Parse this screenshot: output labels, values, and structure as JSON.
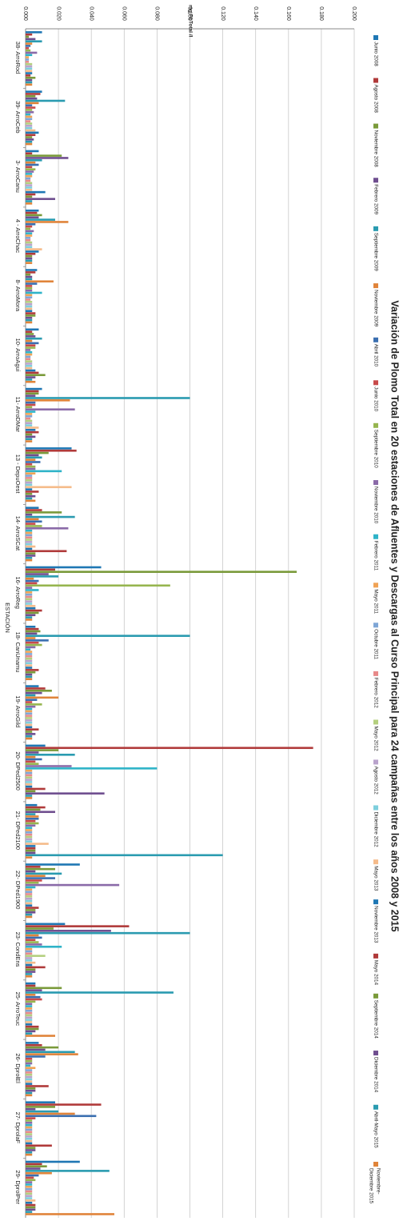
{
  "chart_data": {
    "type": "bar",
    "orientation": "horizontal",
    "title": "Variación de Plomo Total en 20 estaciones de Afluentes y Descargas al Curso Principal para 24 campañas entre los años 2008 y 2015",
    "xlabel": "mg PbTotal /l",
    "ylabel": "ESTACIÓN",
    "xlim": [
      0,
      0.2
    ],
    "x_ticks": [
      "0.000",
      "0.020",
      "0.040",
      "0.060",
      "0.080",
      "0.100",
      "0.120",
      "0.140",
      "0.160",
      "0.180",
      "0.200"
    ],
    "grid": true,
    "legend_position": "right",
    "categories": [
      "38- ArroRod",
      "39- ArroCeb",
      "3- ArroCanu",
      "4 - ArroChac",
      "8- ArroMora",
      "10- ArroAgui",
      "11- ArroDMar",
      "13 - DepuOest",
      "14- ArroSCat",
      "16- ArroReg",
      "18- CanUnamu",
      "19- ArroGild",
      "20- DPed2500",
      "21- DPed2100",
      "22- DPed1900",
      "23- CondEns",
      "25- ArroTeuc",
      "26- DprolEl",
      "27- DprolaF",
      "29- DprolPer"
    ],
    "colors": [
      "#1f77b4",
      "#b03a3a",
      "#7a9a3a",
      "#6f4e8f",
      "#2a9bb0",
      "#e0843a",
      "#3b6fb0",
      "#c84a4a",
      "#96b54f",
      "#8a6aa8",
      "#2fb3c8",
      "#f0a355",
      "#7ea6d6",
      "#e88a8a",
      "#b4cf7e",
      "#b9a3cc",
      "#7ecfdd",
      "#f5bb8a"
    ],
    "series": [
      {
        "name": "Junio 2008",
        "values": [
          0.01,
          0.01,
          0.008,
          0.008,
          0.007,
          0.008,
          0.01,
          0.028,
          0.008,
          0.046,
          0.006,
          0.008,
          0.012,
          0.007,
          0.033,
          0.024,
          0.006,
          0.008,
          0.018,
          0.033
        ]
      },
      {
        "name": "Agosto 2008",
        "values": [
          0.004,
          0.009,
          0.004,
          0.007,
          0.006,
          0.004,
          0.008,
          0.031,
          0.01,
          0.018,
          0.008,
          0.012,
          0.175,
          0.012,
          0.009,
          0.063,
          0.006,
          0.01,
          0.046,
          0.01
        ]
      },
      {
        "name": "Noviembre 2008",
        "values": [
          0.002,
          0.006,
          0.022,
          0.01,
          0.003,
          0.005,
          0.008,
          0.014,
          0.022,
          0.165,
          0.009,
          0.016,
          0.02,
          0.009,
          0.018,
          0.017,
          0.022,
          0.02,
          0.018,
          0.013
        ]
      },
      {
        "name": "Febrero 2009",
        "values": [
          0.006,
          0.007,
          0.026,
          0.008,
          0.004,
          0.006,
          0.006,
          0.008,
          0.004,
          0.014,
          0.007,
          0.01,
          0.008,
          0.018,
          0.006,
          0.052,
          0.01,
          0.012,
          0.006,
          0.009
        ]
      },
      {
        "name": "Septiembre 2009",
        "values": [
          0.01,
          0.024,
          0.01,
          0.018,
          0.004,
          0.01,
          0.1,
          0.01,
          0.03,
          0.02,
          0.1,
          0.006,
          0.03,
          0.006,
          0.022,
          0.1,
          0.09,
          0.03,
          0.02,
          0.051
        ]
      },
      {
        "name": "Noviembre 2009",
        "values": [
          0.004,
          0.008,
          0.006,
          0.026,
          0.017,
          0.004,
          0.027,
          0.006,
          0.008,
          0.005,
          0.006,
          0.02,
          0.006,
          0.008,
          0.012,
          0.008,
          0.006,
          0.032,
          0.03,
          0.016
        ]
      },
      {
        "name": "Abril 2010",
        "values": [
          0.003,
          0.004,
          0.008,
          0.006,
          0.007,
          0.008,
          0.006,
          0.009,
          0.01,
          0.008,
          0.014,
          0.007,
          0.01,
          0.008,
          0.018,
          0.01,
          0.009,
          0.012,
          0.043,
          0.008
        ]
      },
      {
        "name": "Junio 2010",
        "values": [
          0.002,
          0.006,
          0.004,
          0.004,
          0.004,
          0.006,
          0.006,
          0.004,
          0.006,
          0.007,
          0.008,
          0.004,
          0.006,
          0.006,
          0.01,
          0.006,
          0.01,
          0.004,
          0.006,
          0.005
        ]
      },
      {
        "name": "Septiembre 2010",
        "values": [
          0.003,
          0.004,
          0.006,
          0.003,
          0.004,
          0.006,
          0.004,
          0.006,
          0.01,
          0.088,
          0.01,
          0.01,
          0.008,
          0.008,
          0.008,
          0.008,
          0.006,
          0.004,
          0.004,
          0.006
        ]
      },
      {
        "name": "Noviembre 2010",
        "values": [
          0.007,
          0.005,
          0.005,
          0.005,
          0.004,
          0.003,
          0.03,
          0.006,
          0.026,
          0.004,
          0.006,
          0.006,
          0.028,
          0.006,
          0.057,
          0.01,
          0.004,
          0.004,
          0.004,
          0.004
        ]
      },
      {
        "name": "Febrero 2011",
        "values": [
          0.004,
          0.003,
          0.004,
          0.004,
          0.01,
          0.004,
          0.006,
          0.022,
          0.004,
          0.008,
          0.003,
          0.004,
          0.08,
          0.004,
          0.006,
          0.022,
          0.004,
          0.003,
          0.004,
          0.004
        ]
      },
      {
        "name": "Mayo 2011",
        "values": [
          0.002,
          0.004,
          0.004,
          0.004,
          0.004,
          0.004,
          0.004,
          0.006,
          0.004,
          0.004,
          0.004,
          0.004,
          0.004,
          0.004,
          0.004,
          0.004,
          0.004,
          0.006,
          0.004,
          0.004
        ]
      },
      {
        "name": "Octubre 2011",
        "values": [
          0.002,
          0.004,
          0.003,
          0.003,
          0.004,
          0.003,
          0.004,
          0.004,
          0.004,
          0.004,
          0.004,
          0.004,
          0.004,
          0.004,
          0.004,
          0.004,
          0.004,
          0.004,
          0.004,
          0.004
        ]
      },
      {
        "name": "Febrero 2012",
        "values": [
          0.002,
          0.003,
          0.003,
          0.003,
          0.003,
          0.003,
          0.003,
          0.004,
          0.004,
          0.004,
          0.004,
          0.004,
          0.004,
          0.004,
          0.004,
          0.004,
          0.004,
          0.004,
          0.004,
          0.004
        ]
      },
      {
        "name": "Mayo 2012",
        "values": [
          0.004,
          0.004,
          0.004,
          0.004,
          0.004,
          0.004,
          0.004,
          0.004,
          0.004,
          0.004,
          0.004,
          0.004,
          0.004,
          0.004,
          0.004,
          0.012,
          0.004,
          0.004,
          0.004,
          0.004
        ]
      },
      {
        "name": "Agosto 2012",
        "values": [
          0.004,
          0.004,
          0.004,
          0.004,
          0.004,
          0.004,
          0.004,
          0.004,
          0.004,
          0.004,
          0.004,
          0.004,
          0.004,
          0.004,
          0.004,
          0.004,
          0.004,
          0.004,
          0.004,
          0.004
        ]
      },
      {
        "name": "Diciembre 2012",
        "values": [
          0.004,
          0.004,
          0.004,
          0.004,
          0.004,
          0.004,
          0.004,
          0.004,
          0.004,
          0.004,
          0.004,
          0.004,
          0.004,
          0.004,
          0.004,
          0.004,
          0.004,
          0.004,
          0.004,
          0.004
        ]
      },
      {
        "name": "Mayo 2013",
        "values": [
          0.004,
          0.006,
          0.004,
          0.01,
          0.004,
          0.004,
          0.008,
          0.028,
          0.006,
          0.006,
          0.004,
          0.004,
          0.004,
          0.014,
          0.004,
          0.006,
          0.004,
          0.004,
          0.004,
          0.006
        ]
      },
      {
        "name": "Noviembre 2013",
        "values": [
          0.004,
          0.008,
          0.012,
          0.008,
          0.004,
          0.006,
          0.006,
          0.004,
          0.004,
          0.006,
          0.004,
          0.004,
          0.004,
          0.006,
          0.004,
          0.004,
          0.004,
          0.004,
          0.004,
          0.004
        ]
      },
      {
        "name": "Mayo 2014",
        "values": [
          0.003,
          0.006,
          0.006,
          0.006,
          0.006,
          0.008,
          0.008,
          0.008,
          0.025,
          0.01,
          0.008,
          0.008,
          0.012,
          0.006,
          0.008,
          0.012,
          0.008,
          0.014,
          0.016,
          0.006
        ]
      },
      {
        "name": "Septiembre 2014",
        "values": [
          0.006,
          0.004,
          0.004,
          0.004,
          0.006,
          0.012,
          0.004,
          0.004,
          0.006,
          0.008,
          0.006,
          0.004,
          0.006,
          0.006,
          0.006,
          0.006,
          0.008,
          0.006,
          0.006,
          0.006
        ]
      },
      {
        "name": "Diciembre 2014",
        "values": [
          0.004,
          0.005,
          0.018,
          0.004,
          0.004,
          0.006,
          0.006,
          0.006,
          0.006,
          0.006,
          0.004,
          0.006,
          0.048,
          0.006,
          0.006,
          0.006,
          0.006,
          0.006,
          0.006,
          0.006
        ]
      },
      {
        "name": "Abril-Mayo 2015",
        "values": [
          0.004,
          0.004,
          0.004,
          0.004,
          0.004,
          0.004,
          0.004,
          0.004,
          0.004,
          0.004,
          0.004,
          0.004,
          0.004,
          0.12,
          0.004,
          0.004,
          0.004,
          0.004,
          0.004,
          0.004
        ]
      },
      {
        "name": "Noviembre-Diciembre 2015",
        "values": [
          0.004,
          0.004,
          0.004,
          0.004,
          0.004,
          0.006,
          0.004,
          0.006,
          0.004,
          0.004,
          0.004,
          0.004,
          0.004,
          0.004,
          0.004,
          0.004,
          0.018,
          0.004,
          0.004,
          0.054
        ]
      }
    ]
  }
}
